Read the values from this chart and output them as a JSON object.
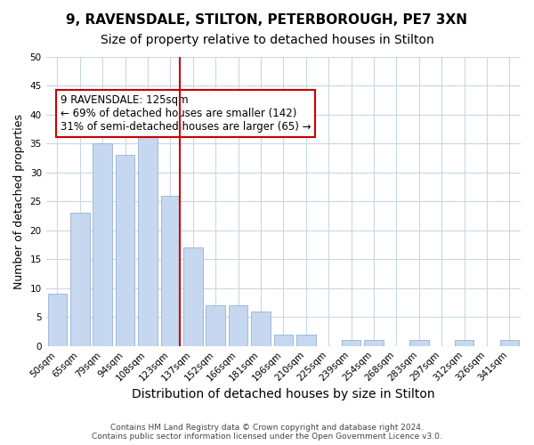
{
  "title": "9, RAVENSDALE, STILTON, PETERBOROUGH, PE7 3XN",
  "subtitle": "Size of property relative to detached houses in Stilton",
  "xlabel": "Distribution of detached houses by size in Stilton",
  "ylabel": "Number of detached properties",
  "bar_labels": [
    "50sqm",
    "65sqm",
    "79sqm",
    "94sqm",
    "108sqm",
    "123sqm",
    "137sqm",
    "152sqm",
    "166sqm",
    "181sqm",
    "196sqm",
    "210sqm",
    "225sqm",
    "239sqm",
    "254sqm",
    "268sqm",
    "283sqm",
    "297sqm",
    "312sqm",
    "326sqm",
    "341sqm"
  ],
  "bar_values": [
    9,
    23,
    35,
    33,
    38,
    26,
    17,
    7,
    7,
    6,
    2,
    2,
    0,
    1,
    1,
    0,
    1,
    0,
    1,
    0,
    1
  ],
  "bar_color": "#c5d8f0",
  "bar_edge_color": "#a0b8d8",
  "ylim": [
    0,
    50
  ],
  "yticks": [
    0,
    5,
    10,
    15,
    20,
    25,
    30,
    35,
    40,
    45,
    50
  ],
  "vline_x": 5,
  "vline_color": "#cc0000",
  "annotation_text": "9 RAVENSDALE: 125sqm\n← 69% of detached houses are smaller (142)\n31% of semi-detached houses are larger (65) →",
  "annotation_box_edge": "#cc0000",
  "background_color": "#ffffff",
  "grid_color": "#c8d8e8",
  "footer_text": "Contains HM Land Registry data © Crown copyright and database right 2024.\nContains public sector information licensed under the Open Government Licence v3.0.",
  "title_fontsize": 11,
  "subtitle_fontsize": 10,
  "xlabel_fontsize": 10,
  "ylabel_fontsize": 9,
  "annotation_fontsize": 8.5,
  "tick_fontsize": 7.5
}
